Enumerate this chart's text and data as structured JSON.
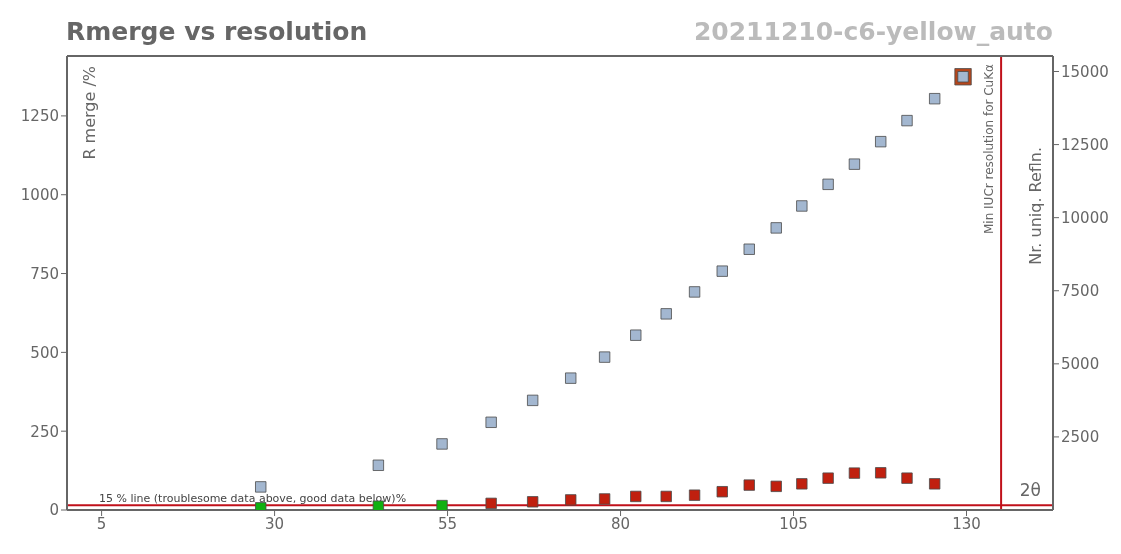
{
  "chart_data": {
    "type": "scatter",
    "title": "Rmerge vs resolution",
    "subtitle": "20211210-c6-yellow_auto",
    "xlabel": "2θ",
    "ylabel": "R merge /%",
    "y2label": "Nr. uniq. Refln.",
    "x": [
      28.0,
      45.0,
      54.2,
      61.3,
      67.3,
      72.8,
      77.7,
      82.2,
      86.6,
      90.7,
      94.7,
      98.6,
      102.5,
      106.2,
      110.0,
      113.8,
      117.6,
      121.4,
      125.4,
      129.5
    ],
    "series": [
      {
        "color": "#b5451b",
        "axis": "y2",
        "values": [
          null,
          null,
          null,
          null,
          null,
          null,
          null,
          null,
          null,
          null,
          null,
          null,
          null,
          null,
          null,
          null,
          null,
          null,
          null,
          14820
        ]
      },
      {
        "color": "#a3b7d0",
        "axis": "y2",
        "values": [
          790,
          1530,
          2260,
          3000,
          3750,
          4510,
          5230,
          5980,
          6710,
          7460,
          8170,
          8920,
          9650,
          10400,
          11140,
          11830,
          12600,
          13320,
          14070,
          14820
        ]
      },
      {
        "color": "#c0200f",
        "values": [
          null,
          null,
          null,
          21,
          26,
          32,
          35,
          43,
          43,
          47,
          58,
          79,
          75,
          83,
          101,
          117,
          118,
          101,
          83,
          null
        ]
      },
      {
        "color": "#11b011",
        "values": [
          7,
          12,
          14,
          null,
          null,
          null,
          null,
          null,
          null,
          null,
          null,
          null,
          null,
          null,
          null,
          null,
          null,
          null,
          null,
          null
        ]
      }
    ],
    "xlim": [
      0,
      142.5
    ],
    "xticks": [
      5,
      30,
      55,
      80,
      105,
      130
    ],
    "ylim": [
      0,
      1440
    ],
    "yticks": [
      0,
      250,
      500,
      750,
      1000,
      1250
    ],
    "y2lim": [
      0,
      15530
    ],
    "y2ticks": [
      2500,
      5000,
      7500,
      10000,
      12500,
      15000
    ],
    "ref_lines": [
      {
        "axis": "y",
        "value": 15,
        "label": "15 % line (troublesome data above, good data below)%",
        "color": "#c0101a"
      },
      {
        "axis": "x",
        "value": 135,
        "label": "Min IUCr resolution for CuKα",
        "color": "#c0101a"
      }
    ],
    "grid": false,
    "legend": false,
    "marker": "square"
  }
}
